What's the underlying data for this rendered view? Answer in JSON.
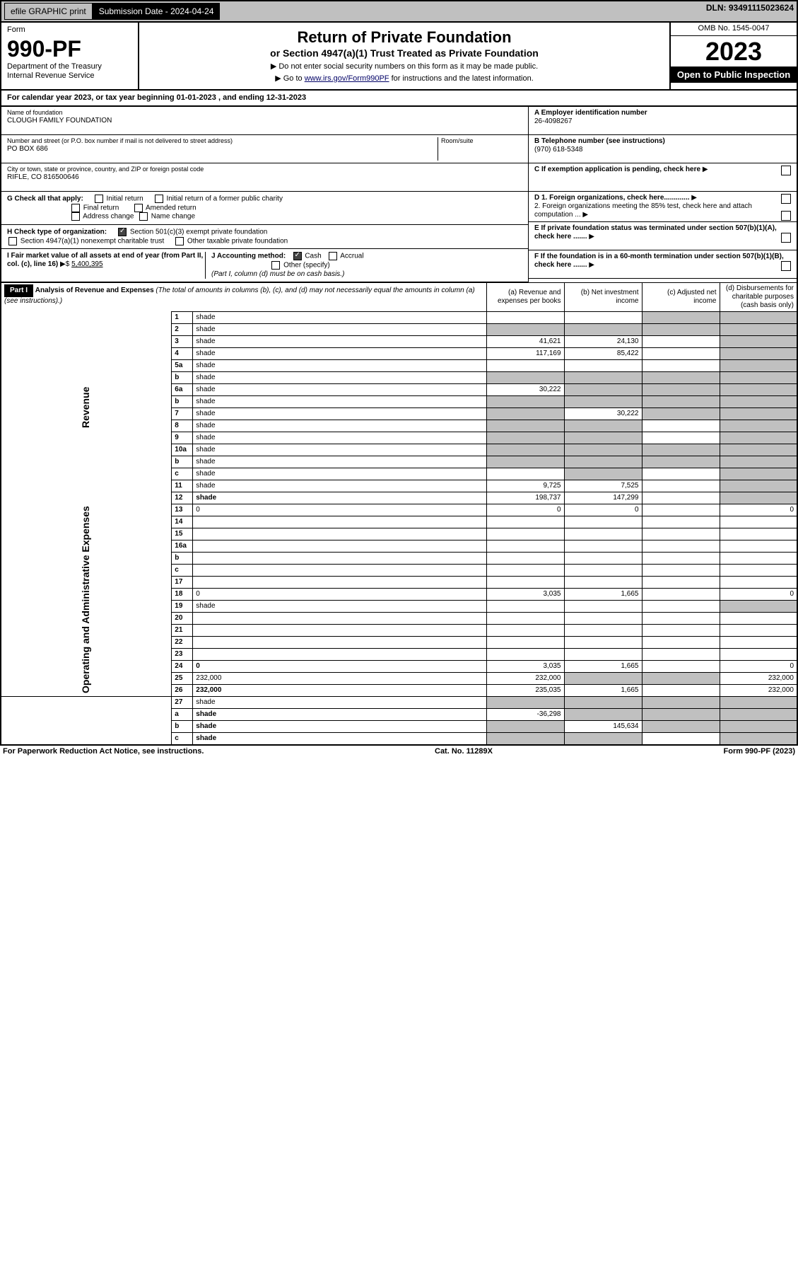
{
  "header": {
    "efile": "efile GRAPHIC print",
    "submission_label": "Submission Date - 2024-04-24",
    "dln": "DLN: 93491115023624",
    "omb": "OMB No. 1545-0047",
    "form_label": "Form",
    "form_no": "990-PF",
    "dept": "Department of the Treasury",
    "irs": "Internal Revenue Service",
    "title": "Return of Private Foundation",
    "subtitle": "or Section 4947(a)(1) Trust Treated as Private Foundation",
    "inst1": "▶ Do not enter social security numbers on this form as it may be made public.",
    "inst2": "▶ Go to www.irs.gov/Form990PF for instructions and the latest information.",
    "link": "www.irs.gov/Form990PF",
    "year": "2023",
    "open": "Open to Public Inspection"
  },
  "tax_year": "For calendar year 2023, or tax year beginning 01-01-2023                     , and ending 12-31-2023",
  "id": {
    "name_label": "Name of foundation",
    "name": "CLOUGH FAMILY FOUNDATION",
    "addr_label": "Number and street (or P.O. box number if mail is not delivered to street address)",
    "room_label": "Room/suite",
    "addr": "PO BOX 686",
    "city_label": "City or town, state or province, country, and ZIP or foreign postal code",
    "city": "RIFLE, CO  816500646",
    "ein_label": "A Employer identification number",
    "ein": "26-4098267",
    "phone_label": "B Telephone number (see instructions)",
    "phone": "(970) 618-5348",
    "c_label": "C If exemption application is pending, check here",
    "d1": "D 1. Foreign organizations, check here.............",
    "d2": "2. Foreign organizations meeting the 85% test, check here and attach computation ...",
    "e_label": "E  If private foundation status was terminated under section 507(b)(1)(A), check here .......",
    "f_label": "F  If the foundation is in a 60-month termination under section 507(b)(1)(B), check here .......",
    "g_label": "G Check all that apply:",
    "g_initial": "Initial return",
    "g_initial_former": "Initial return of a former public charity",
    "g_final": "Final return",
    "g_amended": "Amended return",
    "g_address": "Address change",
    "g_name": "Name change",
    "h_label": "H Check type of organization:",
    "h_501c3": "Section 501(c)(3) exempt private foundation",
    "h_4947": "Section 4947(a)(1) nonexempt charitable trust",
    "h_other": "Other taxable private foundation",
    "i_label": "I Fair market value of all assets at end of year (from Part II, col. (c), line 16)",
    "i_value": "5,400,395",
    "j_label": "J Accounting method:",
    "j_cash": "Cash",
    "j_accrual": "Accrual",
    "j_other": "Other (specify)",
    "j_note": "(Part I, column (d) must be on cash basis.)"
  },
  "part1": {
    "label": "Part I",
    "title": "Analysis of Revenue and Expenses",
    "title_note": "(The total of amounts in columns (b), (c), and (d) may not necessarily equal the amounts in column (a) (see instructions).)",
    "col_a": "(a)   Revenue and expenses per books",
    "col_b": "(b)   Net investment income",
    "col_c": "(c)   Adjusted net income",
    "col_d": "(d)   Disbursements for charitable purposes (cash basis only)"
  },
  "sections": {
    "revenue": "Revenue",
    "operating": "Operating and Administrative Expenses"
  },
  "rows": [
    {
      "n": "1",
      "d": "shade",
      "a": "",
      "b": "",
      "c": "shade"
    },
    {
      "n": "2",
      "d": "shade",
      "a": "shade",
      "b": "shade",
      "c": "shade"
    },
    {
      "n": "3",
      "d": "shade",
      "a": "41,621",
      "b": "24,130",
      "c": ""
    },
    {
      "n": "4",
      "d": "shade",
      "a": "117,169",
      "b": "85,422",
      "c": ""
    },
    {
      "n": "5a",
      "d": "shade",
      "a": "",
      "b": "",
      "c": ""
    },
    {
      "n": "b",
      "d": "shade",
      "a": "shade",
      "b": "shade",
      "c": "shade"
    },
    {
      "n": "6a",
      "d": "shade",
      "a": "30,222",
      "b": "shade",
      "c": "shade"
    },
    {
      "n": "b",
      "d": "shade",
      "a": "shade",
      "b": "shade",
      "c": "shade"
    },
    {
      "n": "7",
      "d": "shade",
      "a": "shade",
      "b": "30,222",
      "c": "shade"
    },
    {
      "n": "8",
      "d": "shade",
      "a": "shade",
      "b": "shade",
      "c": ""
    },
    {
      "n": "9",
      "d": "shade",
      "a": "shade",
      "b": "shade",
      "c": ""
    },
    {
      "n": "10a",
      "d": "shade",
      "a": "shade",
      "b": "shade",
      "c": "shade"
    },
    {
      "n": "b",
      "d": "shade",
      "a": "shade",
      "b": "shade",
      "c": "shade"
    },
    {
      "n": "c",
      "d": "shade",
      "a": "",
      "b": "shade",
      "c": ""
    },
    {
      "n": "11",
      "d": "shade",
      "a": "9,725",
      "b": "7,525",
      "c": ""
    },
    {
      "n": "12",
      "d": "shade",
      "a": "198,737",
      "b": "147,299",
      "c": "",
      "bold": true
    }
  ],
  "exp_rows": [
    {
      "n": "13",
      "d": "0",
      "a": "0",
      "b": "0",
      "c": ""
    },
    {
      "n": "14",
      "d": "",
      "a": "",
      "b": "",
      "c": ""
    },
    {
      "n": "15",
      "d": "",
      "a": "",
      "b": "",
      "c": ""
    },
    {
      "n": "16a",
      "d": "",
      "a": "",
      "b": "",
      "c": ""
    },
    {
      "n": "b",
      "d": "",
      "a": "",
      "b": "",
      "c": ""
    },
    {
      "n": "c",
      "d": "",
      "a": "",
      "b": "",
      "c": ""
    },
    {
      "n": "17",
      "d": "",
      "a": "",
      "b": "",
      "c": ""
    },
    {
      "n": "18",
      "d": "0",
      "a": "3,035",
      "b": "1,665",
      "c": ""
    },
    {
      "n": "19",
      "d": "shade",
      "a": "",
      "b": "",
      "c": ""
    },
    {
      "n": "20",
      "d": "",
      "a": "",
      "b": "",
      "c": ""
    },
    {
      "n": "21",
      "d": "",
      "a": "",
      "b": "",
      "c": ""
    },
    {
      "n": "22",
      "d": "",
      "a": "",
      "b": "",
      "c": ""
    },
    {
      "n": "23",
      "d": "",
      "a": "",
      "b": "",
      "c": ""
    },
    {
      "n": "24",
      "d": "0",
      "a": "3,035",
      "b": "1,665",
      "c": "",
      "bold": true
    },
    {
      "n": "25",
      "d": "232,000",
      "a": "232,000",
      "b": "shade",
      "c": "shade"
    },
    {
      "n": "26",
      "d": "232,000",
      "a": "235,035",
      "b": "1,665",
      "c": "",
      "bold": true
    }
  ],
  "bottom_rows": [
    {
      "n": "27",
      "d": "shade",
      "a": "shade",
      "b": "shade",
      "c": "shade",
      "bold": false
    },
    {
      "n": "a",
      "d": "shade",
      "a": "-36,298",
      "b": "shade",
      "c": "shade",
      "bold": true
    },
    {
      "n": "b",
      "d": "shade",
      "a": "shade",
      "b": "145,634",
      "c": "shade",
      "bold": true
    },
    {
      "n": "c",
      "d": "shade",
      "a": "shade",
      "b": "shade",
      "c": "",
      "bold": true
    }
  ],
  "footer": {
    "left": "For Paperwork Reduction Act Notice, see instructions.",
    "mid": "Cat. No. 11289X",
    "right": "Form 990-PF (2023)"
  }
}
